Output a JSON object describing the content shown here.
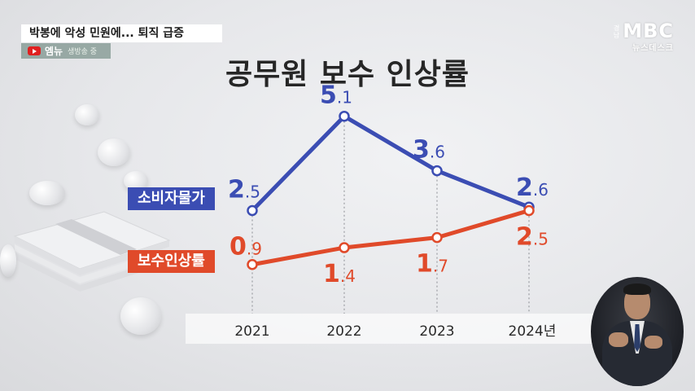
{
  "news": {
    "headline": "박봉에 악성 민원에... 퇴직 급증",
    "live_brand": "엠뉴",
    "live_text": "생방송 중"
  },
  "logo": {
    "brand": "MBC",
    "sub": "뉴스데스크",
    "region": "경남"
  },
  "chart_data": {
    "type": "line",
    "title": "공무원 보수 인상률",
    "categories": [
      "2021",
      "2022",
      "2023",
      "2024년"
    ],
    "series": [
      {
        "name": "소비자물가",
        "values": [
          2.5,
          5.1,
          3.6,
          2.6
        ],
        "labels": [
          "2.5",
          "5.1",
          "3.6",
          "2.6"
        ],
        "color": "#3b4db3"
      },
      {
        "name": "보수인상률",
        "values": [
          0.9,
          1.4,
          1.7,
          2.5
        ],
        "labels": [
          "0.9",
          "1.4",
          "1.7",
          "2.5"
        ],
        "color": "#e04a2a"
      }
    ],
    "grid": false,
    "legend": "left"
  }
}
